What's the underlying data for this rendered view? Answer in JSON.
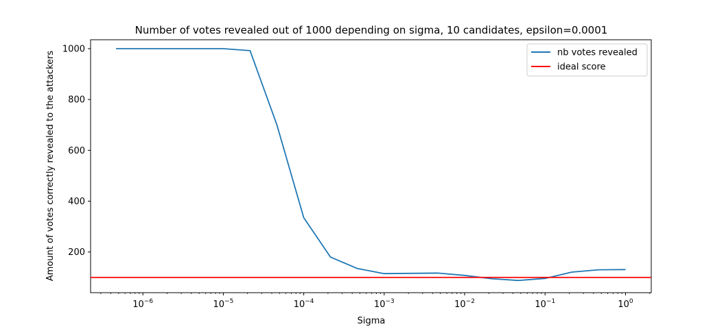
{
  "chart_data": {
    "type": "line",
    "title": "Number of votes revealed out of 1000 depending on sigma, 10 candidates, epsilon=0.0001",
    "xlabel": "Sigma",
    "ylabel": "Amount of votes correctly revealed to the attackers",
    "xscale": "log",
    "xlim_log10": [
      -6.65,
      0.32
    ],
    "ylim": [
      40,
      1035
    ],
    "grid": false,
    "legend_position": "top-right",
    "x_ticks": [
      {
        "base": "10",
        "exp": "−6",
        "log10": -6
      },
      {
        "base": "10",
        "exp": "−5",
        "log10": -5
      },
      {
        "base": "10",
        "exp": "−4",
        "log10": -4
      },
      {
        "base": "10",
        "exp": "−3",
        "log10": -3
      },
      {
        "base": "10",
        "exp": "−2",
        "log10": -2
      },
      {
        "base": "10",
        "exp": "−1",
        "log10": -1
      },
      {
        "base": "10",
        "exp": "0",
        "log10": 0
      }
    ],
    "y_ticks": [
      200,
      400,
      600,
      800,
      1000
    ],
    "series": [
      {
        "name": "nb votes revealed",
        "color": "#1f77b4",
        "x": [
          4.64e-07,
          1e-05,
          2.15e-05,
          4.64e-05,
          0.0001,
          0.000215,
          0.000464,
          0.001,
          0.00464,
          0.01,
          0.0215,
          0.0464,
          0.1,
          0.215,
          0.464,
          1.0
        ],
        "y": [
          1000,
          1000,
          992,
          700,
          335,
          180,
          135,
          115,
          117,
          108,
          95,
          88,
          96,
          121,
          130,
          131
        ]
      },
      {
        "name": "ideal score",
        "color": "#ff0000",
        "type": "hline",
        "y": 100
      }
    ]
  }
}
